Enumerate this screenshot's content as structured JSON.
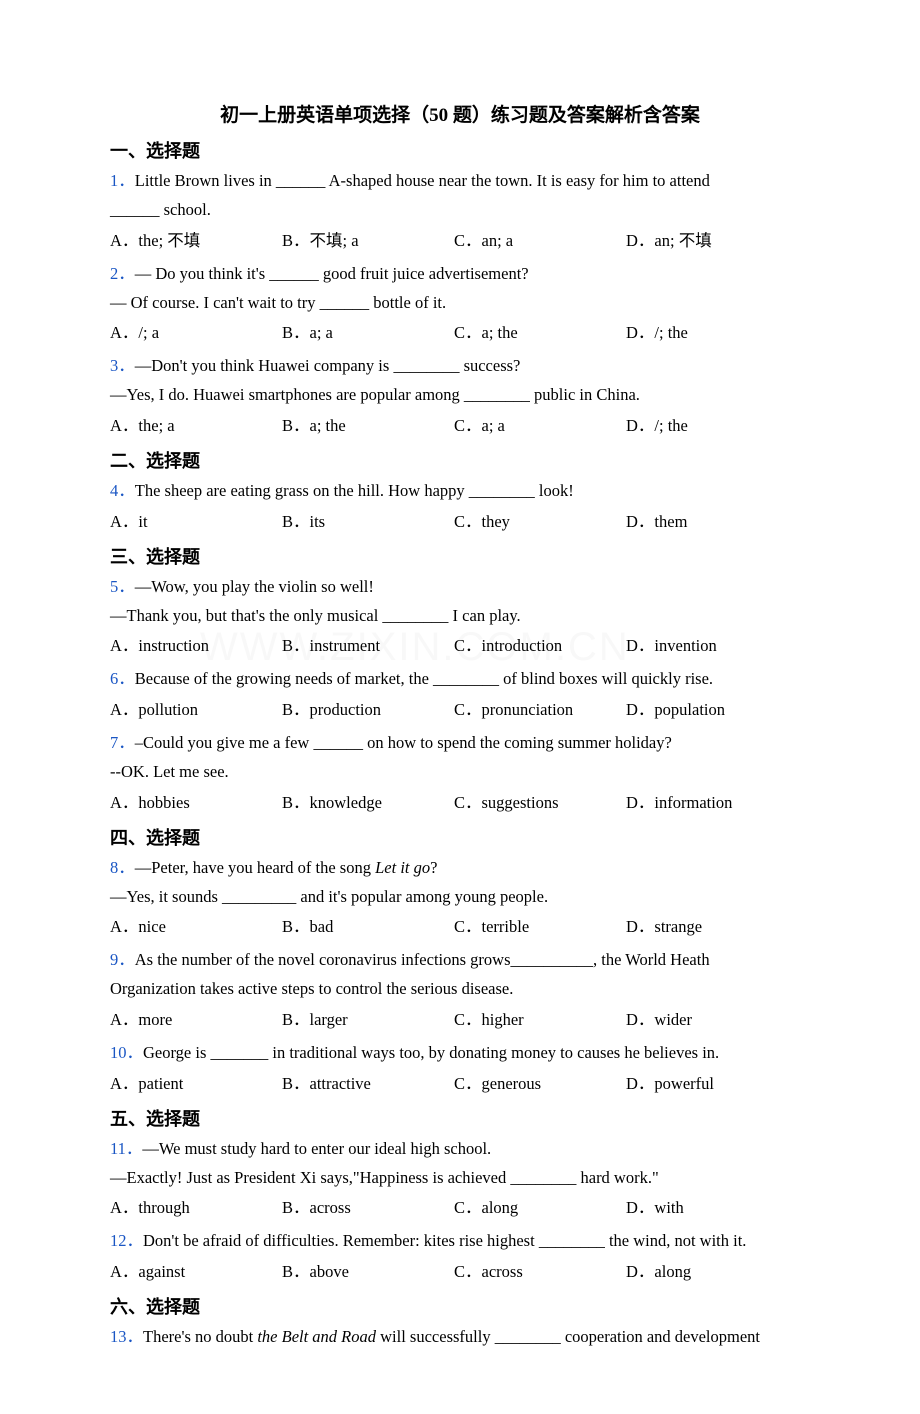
{
  "title": "初一上册英语单项选择（50 题）练习题及答案解析含答案",
  "sections": [
    {
      "header": "一、选择题",
      "questions": [
        {
          "num": "1．",
          "lines": [
            "Little Brown lives in ______ A-shaped house near the town. It is easy for him to attend",
            "______ school."
          ],
          "options": [
            "A．the; 不填",
            "B．不填; a",
            "C．an; a",
            "D．an; 不填"
          ]
        },
        {
          "num": "2．",
          "lines": [
            "— Do you think it's ______ good fruit juice advertisement?",
            "— Of course. I can't wait to try ______ bottle of it."
          ],
          "options": [
            "A．/; a",
            "B．a; a",
            "C．a; the",
            "D．/; the"
          ]
        },
        {
          "num": "3．",
          "lines": [
            "—Don't you think Huawei company is ________ success?",
            "—Yes, I do. Huawei smartphones are popular among ________ public in China."
          ],
          "options": [
            "A．the; a",
            "B．a; the",
            "C．a; a",
            "D．/; the"
          ]
        }
      ]
    },
    {
      "header": "二、选择题",
      "questions": [
        {
          "num": "4．",
          "lines": [
            "The sheep are eating grass on the hill. How happy ________ look!"
          ],
          "options": [
            "A．it",
            "B．its",
            "C．they",
            "D．them"
          ]
        }
      ]
    },
    {
      "header": "三、选择题",
      "questions": [
        {
          "num": "5．",
          "lines": [
            "—Wow, you play the violin so well!",
            "—Thank you, but that's the only musical ________ I can play."
          ],
          "options": [
            "A．instruction",
            "B．instrument",
            "C．introduction",
            "D．invention"
          ]
        },
        {
          "num": "6．",
          "lines": [
            "Because of the growing needs of market, the ________ of blind boxes will quickly rise."
          ],
          "options": [
            "A．pollution",
            "B．production",
            "C．pronunciation",
            "D．population"
          ]
        },
        {
          "num": "7．",
          "lines": [
            "–Could you give me a few ______ on how to spend the coming summer holiday?",
            "--OK. Let me see."
          ],
          "options": [
            "A．hobbies",
            "B．knowledge",
            "C．suggestions",
            "D．information"
          ]
        }
      ]
    },
    {
      "header": "四、选择题",
      "questions": [
        {
          "num": "8．",
          "lines": [
            "—Peter, have you heard of the song <i>Let it go</i>?",
            "—Yes, it sounds _________ and it's popular among young people."
          ],
          "options": [
            "A．nice",
            "B．bad",
            "C．terrible",
            "D．strange"
          ]
        },
        {
          "num": "9．",
          "lines": [
            "As the number of the novel coronavirus infections grows__________, the World Heath",
            "Organization takes active steps to control the serious disease."
          ],
          "options": [
            "A．more",
            "B．larger",
            "C．higher",
            "D．wider"
          ]
        },
        {
          "num": "10．",
          "lines": [
            "George is _______ in traditional ways too, by donating money to causes he believes in."
          ],
          "options": [
            "A．patient",
            "B．attractive",
            "C．generous",
            "D．powerful"
          ]
        }
      ]
    },
    {
      "header": "五、选择题",
      "questions": [
        {
          "num": "11．",
          "lines": [
            "—We must study hard to enter our ideal high school.",
            "—Exactly! Just as President Xi says,\"Happiness is achieved ________ hard work.\""
          ],
          "options": [
            "A．through",
            "B．across",
            "C．along",
            "D．with"
          ]
        },
        {
          "num": "12．",
          "lines": [
            "Don't be afraid of difficulties. Remember: kites rise highest ________ the wind, not with it."
          ],
          "options": [
            "A．against",
            "B．above",
            "C．across",
            "D．along"
          ]
        }
      ]
    },
    {
      "header": "六、选择题",
      "questions": [
        {
          "num": "13．",
          "lines": [
            "There's no doubt <i>the Belt and Road</i> will successfully ________ cooperation and development"
          ],
          "options": null
        }
      ]
    }
  ],
  "watermark_text": "WWW.ZIXIN.COM.CN",
  "colors": {
    "qnum": "#1a56c4",
    "text": "#000000",
    "background": "#ffffff"
  }
}
